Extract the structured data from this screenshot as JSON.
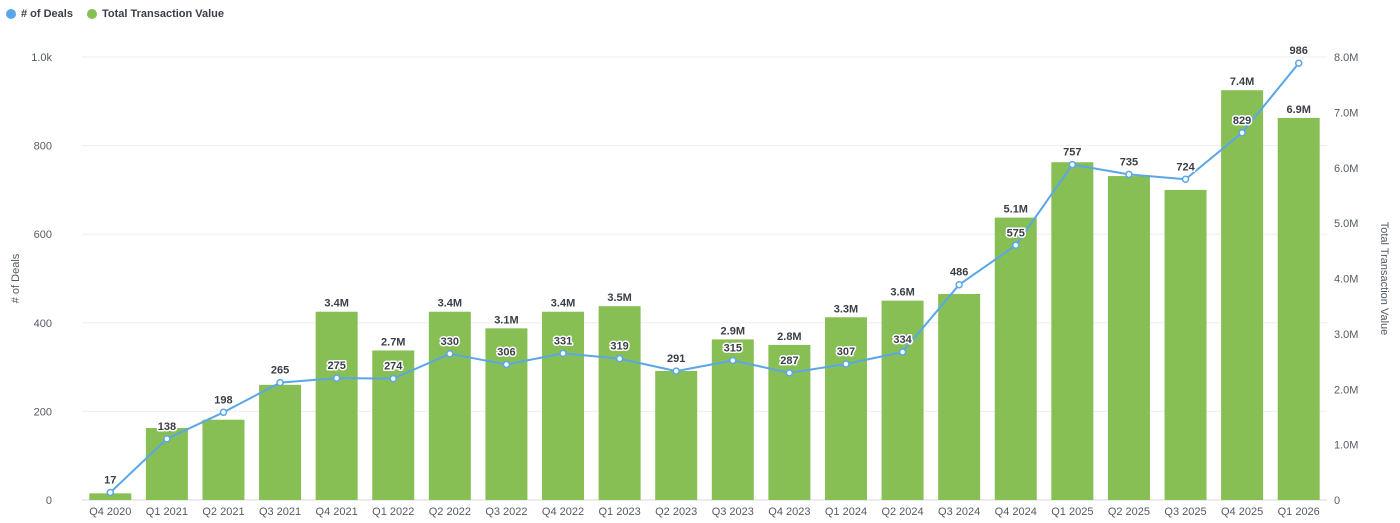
{
  "legend": {
    "deals_label": "# of Deals",
    "value_label": "Total Transaction Value"
  },
  "colors": {
    "deals": "#5aa6e6",
    "value": "#88bf55"
  },
  "chart_data": {
    "type": "bar",
    "categories": [
      "Q4 2020",
      "Q1 2021",
      "Q2 2021",
      "Q3 2021",
      "Q4 2021",
      "Q1 2022",
      "Q2 2022",
      "Q3 2022",
      "Q4 2022",
      "Q1 2023",
      "Q2 2023",
      "Q3 2023",
      "Q4 2023",
      "Q1 2024",
      "Q2 2024",
      "Q3 2024",
      "Q4 2024",
      "Q1 2025",
      "Q2 2025",
      "Q3 2025",
      "Q4 2025",
      "Q1 2026"
    ],
    "series": [
      {
        "name": "# of Deals",
        "type": "line",
        "axis": "left",
        "values": [
          17,
          138,
          198,
          265,
          275,
          274,
          330,
          306,
          331,
          319,
          291,
          315,
          287,
          307,
          334,
          486,
          575,
          757,
          735,
          724,
          829,
          986
        ],
        "labels": [
          "17",
          "138",
          "198",
          "265",
          "275",
          "274",
          "330",
          "306",
          "331",
          "319",
          "291",
          "315",
          "287",
          "307",
          "334",
          "486",
          "575",
          "757",
          "735",
          "724",
          "829",
          "986"
        ]
      },
      {
        "name": "Total Transaction Value",
        "type": "bar",
        "axis": "right",
        "values": [
          0.12,
          1.3,
          1.45,
          2.08,
          3.4,
          2.7,
          3.4,
          3.1,
          3.4,
          3.5,
          2.33,
          2.9,
          2.8,
          3.3,
          3.6,
          3.72,
          5.1,
          6.1,
          5.85,
          5.6,
          7.4,
          6.9
        ],
        "labels": [
          "",
          "",
          "",
          "",
          "3.4M",
          "2.7M",
          "3.4M",
          "3.1M",
          "3.4M",
          "3.5M",
          "",
          "2.9M",
          "2.8M",
          "3.3M",
          "3.6M",
          "",
          "5.1M",
          "",
          "",
          "",
          "7.4M",
          "6.9M"
        ]
      }
    ],
    "ylabel": "# of Deals",
    "y2label": "Total Transaction Value",
    "ylim": [
      0,
      1000
    ],
    "y2lim": [
      0,
      8
    ],
    "yticks": [
      0,
      200,
      400,
      600,
      800,
      1000
    ],
    "ytick_labels": [
      "0",
      "200",
      "400",
      "600",
      "800",
      "1.0k"
    ],
    "y2ticks": [
      0,
      1,
      2,
      3,
      4,
      5,
      6,
      7,
      8
    ],
    "y2tick_labels": [
      "0",
      "1.0M",
      "2.0M",
      "3.0M",
      "4.0M",
      "5.0M",
      "6.0M",
      "7.0M",
      "8.0M"
    ],
    "grid": true,
    "legend_position": "top-left"
  }
}
